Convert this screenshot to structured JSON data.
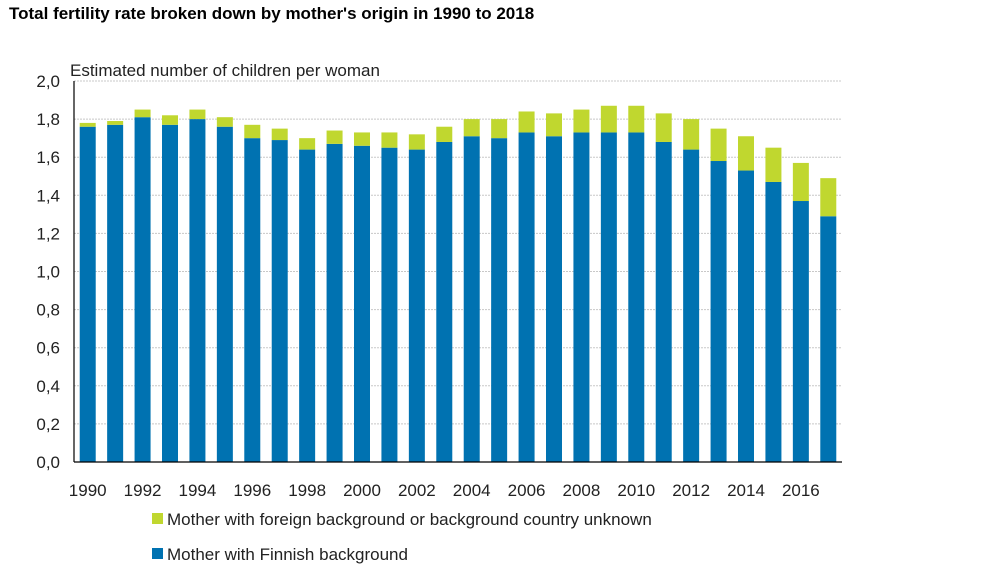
{
  "chart_data": {
    "type": "stacked-bar",
    "title": "Total fertility rate broken down by mother's origin in 1990 to 2018",
    "ylabel": "Estimated number of children per woman",
    "xlabel": "",
    "ylim": [
      0,
      2.0
    ],
    "yticks": [
      "0,0",
      "0,2",
      "0,4",
      "0,6",
      "0,8",
      "1,0",
      "1,2",
      "1,4",
      "1,6",
      "1,8",
      "2,0"
    ],
    "grid": true,
    "legend_position": "bottom",
    "categories": [
      1990,
      1991,
      1992,
      1993,
      1994,
      1995,
      1996,
      1997,
      1998,
      1999,
      2000,
      2001,
      2002,
      2003,
      2004,
      2005,
      2006,
      2007,
      2008,
      2009,
      2010,
      2011,
      2012,
      2013,
      2014,
      2015,
      2016,
      2017
    ],
    "xtick_labels": [
      "1990",
      "1992",
      "1994",
      "1996",
      "1998",
      "2000",
      "2002",
      "2004",
      "2006",
      "2008",
      "2010",
      "2012",
      "2014",
      "2016"
    ],
    "series": [
      {
        "name": "Mother with Finnish background",
        "color": "#0072b1",
        "values": [
          1.76,
          1.77,
          1.81,
          1.77,
          1.8,
          1.76,
          1.7,
          1.69,
          1.64,
          1.67,
          1.66,
          1.65,
          1.64,
          1.68,
          1.71,
          1.7,
          1.73,
          1.71,
          1.73,
          1.73,
          1.73,
          1.68,
          1.64,
          1.58,
          1.53,
          1.47,
          1.37,
          1.29
        ]
      },
      {
        "name": "Mother with foreign background or background country unknown",
        "color": "#c0d72f",
        "values": [
          0.02,
          0.02,
          0.04,
          0.05,
          0.05,
          0.05,
          0.07,
          0.06,
          0.06,
          0.07,
          0.07,
          0.08,
          0.08,
          0.08,
          0.09,
          0.1,
          0.11,
          0.12,
          0.12,
          0.14,
          0.14,
          0.15,
          0.16,
          0.17,
          0.18,
          0.18,
          0.2,
          0.2
        ]
      }
    ],
    "legend_order": [
      1,
      0
    ]
  }
}
